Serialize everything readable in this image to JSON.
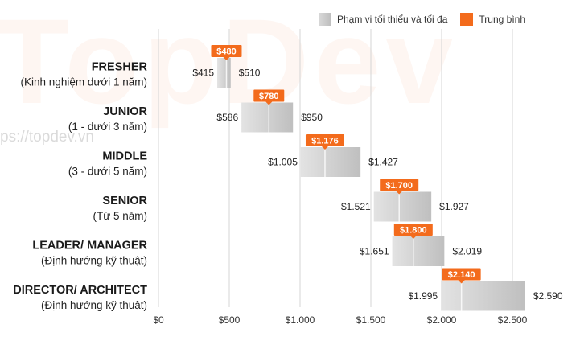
{
  "watermark": {
    "logo": "TopDev",
    "url": "ps://topdev.vn"
  },
  "legend": {
    "range_label": "Phạm vi tối thiểu và tối đa",
    "avg_label": "Trung bình",
    "range_color": "#c9c9c9",
    "avg_color": "#f36b1c"
  },
  "chart_data": {
    "type": "bar",
    "orientation": "horizontal-range",
    "categories": [
      {
        "name": "FRESHER",
        "sub": "(Kinh nghiệm dưới 1 năm)"
      },
      {
        "name": "JUNIOR",
        "sub": "(1 - dưới 3 năm)"
      },
      {
        "name": "MIDDLE",
        "sub": "(3 - dưới 5 năm)"
      },
      {
        "name": "SENIOR",
        "sub": "(Từ 5 năm)"
      },
      {
        "name": "LEADER/ MANAGER",
        "sub": "(Định hướng kỹ thuật)"
      },
      {
        "name": "DIRECTOR/ ARCHITECT",
        "sub": "(Định hướng kỹ thuật)"
      }
    ],
    "series": [
      {
        "name": "Phạm vi tối thiểu và tối đa",
        "min": [
          415,
          586,
          1005,
          1521,
          1651,
          1995
        ],
        "max": [
          510,
          950,
          1427,
          1927,
          2019,
          2590
        ],
        "min_labels": [
          "$415",
          "$586",
          "$1.005",
          "$1.521",
          "$1.651",
          "$1.995"
        ],
        "max_labels": [
          "$510",
          "$950",
          "$1.427",
          "$1.927",
          "$2.019",
          "$2.590"
        ]
      },
      {
        "name": "Trung bình",
        "values": [
          480,
          780,
          1176,
          1700,
          1800,
          2140
        ],
        "labels": [
          "$480",
          "$780",
          "$1.176",
          "$1.700",
          "$1.800",
          "$2.140"
        ]
      }
    ],
    "xlim": [
      0,
      2700
    ],
    "xticks": [
      0,
      500,
      1000,
      1500,
      2000,
      2500
    ],
    "xtick_labels": [
      "$0",
      "$500",
      "$1.000",
      "$1.500",
      "$2.000",
      "$2.500"
    ],
    "grid": "vertical",
    "legend_position": "top-right"
  }
}
